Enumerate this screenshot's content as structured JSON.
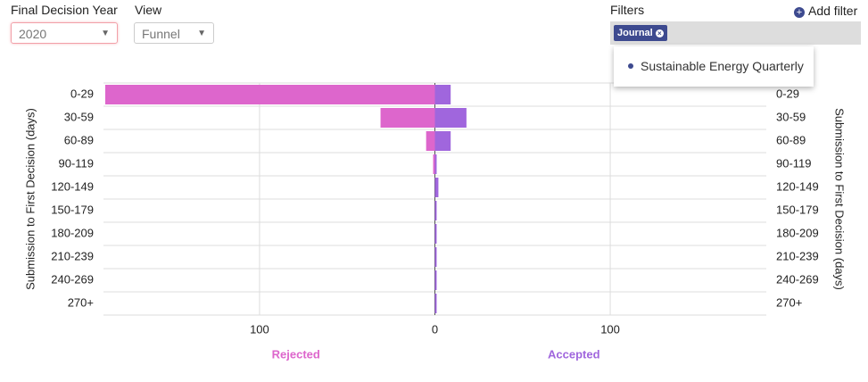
{
  "controls": {
    "year_label": "Final Decision Year",
    "year_value": "2020",
    "view_label": "View",
    "view_value": "Funnel",
    "filters_label": "Filters",
    "add_filter": "Add filter",
    "filter_chip": "Journal",
    "filter_option": "Sustainable Energy Quarterly"
  },
  "chart_data": {
    "type": "butterfly",
    "y_label": "Submission to First Decision (days)",
    "categories": [
      "0-29",
      "30-59",
      "60-89",
      "90-119",
      "120-149",
      "150-179",
      "180-209",
      "210-239",
      "240-269",
      "270+"
    ],
    "series": [
      {
        "name": "Rejected",
        "color": "#dd66cc",
        "side": "left",
        "values": [
          188,
          31,
          5,
          1,
          0,
          0,
          0,
          0,
          0,
          0
        ]
      },
      {
        "name": "Accepted",
        "color": "#a066dd",
        "side": "right",
        "values": [
          9,
          18,
          9,
          1,
          2,
          1,
          1,
          1,
          1,
          1
        ]
      }
    ],
    "xlim": [
      -189,
      189
    ],
    "xticks": [
      {
        "value": -100,
        "label": "100"
      },
      0,
      100
    ],
    "grid": true
  }
}
